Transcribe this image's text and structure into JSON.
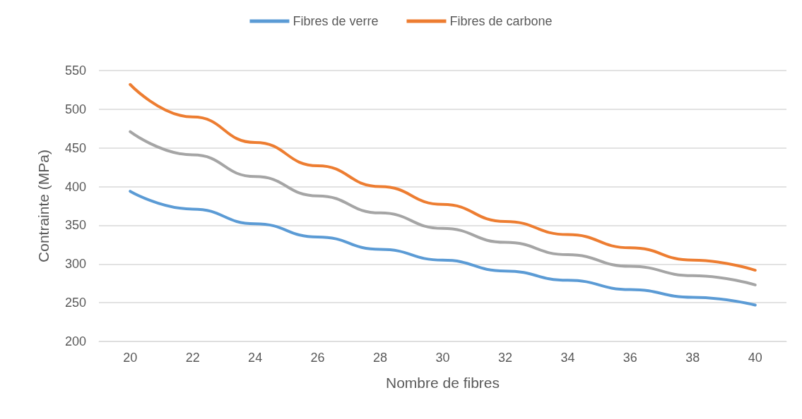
{
  "chart_data": {
    "type": "line",
    "xlabel": "Nombre de fibres",
    "ylabel": "Contrainte (MPa)",
    "categories": [
      "20",
      "22",
      "24",
      "26",
      "28",
      "30",
      "32",
      "34",
      "36",
      "38",
      "40"
    ],
    "series": [
      {
        "name": "Fibres de verre",
        "color": "#5b9bd5",
        "values": [
          394,
          371,
          352,
          335,
          319,
          305,
          291,
          279,
          267,
          257,
          247
        ]
      },
      {
        "name": "Fibres de carbone",
        "color": "#ed7d31",
        "values": [
          532,
          490,
          457,
          427,
          400,
          377,
          355,
          338,
          321,
          305,
          292
        ]
      },
      {
        "color": "#a5a5a5",
        "values": [
          471,
          441,
          413,
          388,
          366,
          346,
          328,
          312,
          297,
          285,
          273
        ]
      }
    ],
    "ylim": [
      200,
      550
    ],
    "yticks": [
      200,
      250,
      300,
      350,
      400,
      450,
      500,
      550
    ],
    "grid": "y",
    "legend": "top",
    "marker": "none",
    "line_style": "solid"
  }
}
